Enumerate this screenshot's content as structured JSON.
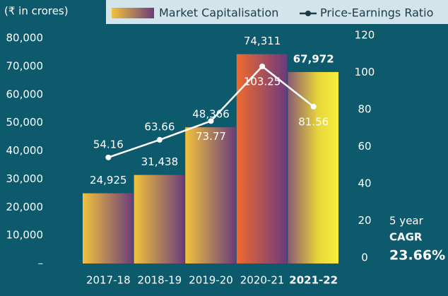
{
  "chart_data": {
    "type": "bar",
    "unit_label": "(₹ in crores)",
    "categories": [
      "2017-18",
      "2018-19",
      "2019-20",
      "2020-21",
      "2021-22"
    ],
    "series": [
      {
        "name": "Market Capitalisation",
        "values": [
          24925,
          31438,
          48366,
          74311,
          67972
        ],
        "value_labels": [
          "24,925",
          "31,438",
          "48,366",
          "74,311",
          "67,972"
        ]
      },
      {
        "name": "Price-Earnings Ratio",
        "type": "line",
        "axis": "y2",
        "color": "#ffffff",
        "values": [
          54.16,
          63.66,
          73.77,
          103.25,
          81.56
        ]
      }
    ],
    "ylim": [
      0,
      80000
    ],
    "yticks": [
      {
        "value": 0,
        "label": "–"
      },
      {
        "value": 10000,
        "label": "10,000"
      },
      {
        "value": 20000,
        "label": "20,000"
      },
      {
        "value": 30000,
        "label": "30,000"
      },
      {
        "value": 40000,
        "label": "40,000"
      },
      {
        "value": 50000,
        "label": "50,000"
      },
      {
        "value": 60000,
        "label": "60,000"
      },
      {
        "value": 70000,
        "label": "70,000"
      },
      {
        "value": 80000,
        "label": "80,000"
      }
    ],
    "y2lim": [
      0,
      120
    ],
    "y2ticks": [
      0,
      20,
      40,
      60,
      80,
      100,
      120
    ],
    "annotation": {
      "line1": "5 year",
      "line2": "CAGR",
      "value": "23.66%"
    }
  }
}
